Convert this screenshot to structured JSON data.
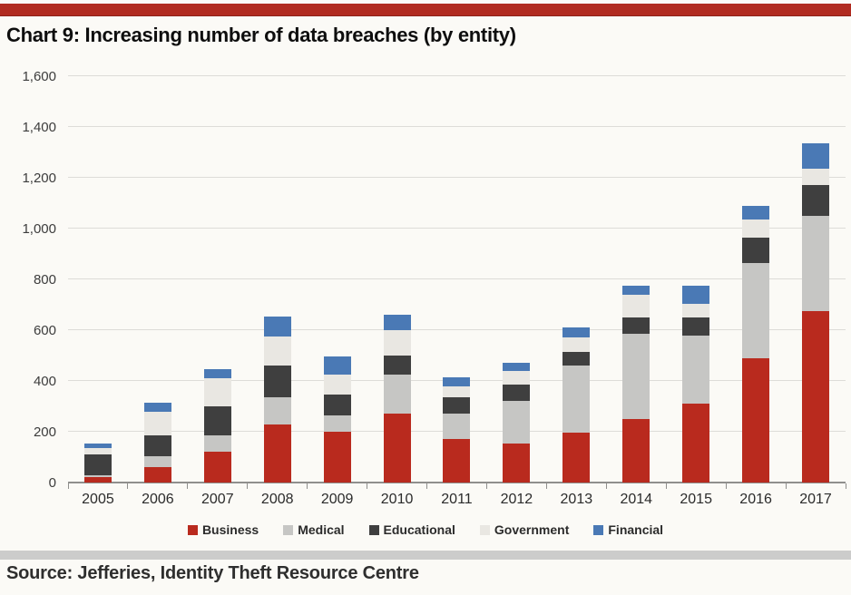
{
  "header": {
    "title": "Chart 9: Increasing number of data breaches (by entity)"
  },
  "source": {
    "label": "Source: Jefferies, Identity Theft Resource Centre"
  },
  "colors": {
    "accent_bar": "#b12b20",
    "business": "#b92a1e",
    "medical": "#c6c6c4",
    "educational": "#3f3f3f",
    "government": "#e9e7e2",
    "financial": "#4a79b5",
    "gridline": "#dddcd8",
    "axis": "#8f8f8d",
    "divider": "#cccccb"
  },
  "chart_data": {
    "type": "bar",
    "stacked": true,
    "title": "Chart 9: Increasing number of data breaches (by entity)",
    "xlabel": "",
    "ylabel": "",
    "categories": [
      "2005",
      "2006",
      "2007",
      "2008",
      "2009",
      "2010",
      "2011",
      "2012",
      "2013",
      "2014",
      "2015",
      "2016",
      "2017"
    ],
    "series": [
      {
        "name": "Business",
        "color": "#b92a1e",
        "values": [
          20,
          60,
          120,
          230,
          200,
          270,
          170,
          155,
          195,
          250,
          310,
          490,
          675
        ]
      },
      {
        "name": "Medical",
        "color": "#c6c6c4",
        "values": [
          10,
          45,
          65,
          105,
          65,
          155,
          100,
          165,
          265,
          335,
          270,
          375,
          375
        ]
      },
      {
        "name": "Educational",
        "color": "#3f3f3f",
        "values": [
          80,
          80,
          115,
          125,
          80,
          75,
          65,
          65,
          55,
          65,
          70,
          100,
          120
        ]
      },
      {
        "name": "Government",
        "color": "#e9e7e2",
        "values": [
          25,
          95,
          110,
          115,
          80,
          100,
          45,
          55,
          55,
          90,
          55,
          70,
          65
        ]
      },
      {
        "name": "Financial",
        "color": "#4a79b5",
        "values": [
          20,
          35,
          35,
          80,
          70,
          60,
          35,
          30,
          40,
          35,
          70,
          55,
          100
        ]
      }
    ],
    "totals": [
      155,
      315,
      445,
      655,
      495,
      660,
      415,
      470,
      610,
      775,
      775,
      1090,
      1335
    ],
    "ylim": [
      0,
      1600
    ],
    "ytick_step": 200,
    "ytick_values": [
      0,
      200,
      400,
      600,
      800,
      1000,
      1200,
      1400,
      1600
    ],
    "ytick_labels": [
      "0",
      "200",
      "400",
      "600",
      "800",
      "1,000",
      "1,200",
      "1,400",
      "1,600"
    ],
    "grid": true,
    "legend_position": "bottom"
  }
}
